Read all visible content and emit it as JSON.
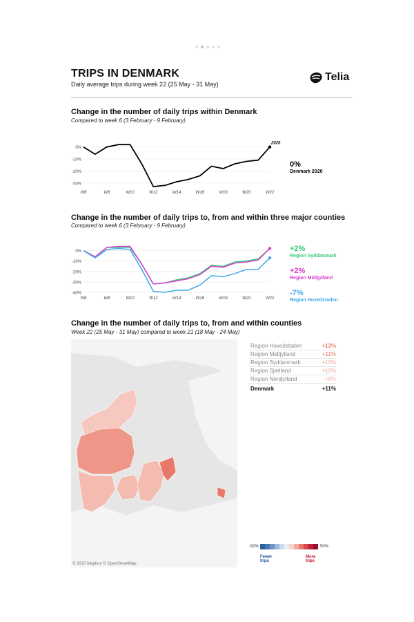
{
  "header": {
    "title": "TRIPS IN DENMARK",
    "subtitle": "Daily average trips during week 22 (25 May - 31 May)",
    "logo_text": "Telia"
  },
  "pager": {
    "count": 5,
    "active": 1
  },
  "colors": {
    "line_dk": "#000000",
    "syddanmark": "#3cc87a",
    "midtjylland": "#d63ccf",
    "hovedstaden": "#3aa8e8",
    "grid": "#e6e6e6"
  },
  "chart_data": [
    {
      "type": "line",
      "title": "Change in the number of daily trips within Denmark",
      "subtitle": "Compared to week 6 (3 February - 9 February)",
      "x": [
        6,
        7,
        8,
        9,
        10,
        11,
        12,
        13,
        14,
        15,
        16,
        17,
        18,
        19,
        20,
        21,
        22
      ],
      "xticks": [
        "W6",
        "W8",
        "W10",
        "W12",
        "W14",
        "W16",
        "W18",
        "W20",
        "W22"
      ],
      "yticks": [
        "0%",
        "-10%",
        "-20%",
        "-30%"
      ],
      "ylim": [
        -33,
        5
      ],
      "grid": true,
      "end_label": "2020",
      "series": [
        {
          "name": "Denmark 2020",
          "color": "#000000",
          "values": [
            0,
            -6,
            0,
            2,
            2,
            -14,
            -33,
            -32,
            -29,
            -27,
            -24,
            -16,
            -18,
            -14,
            -12,
            -11,
            0
          ]
        }
      ],
      "legend": [
        {
          "value": "0%",
          "label": "Denmark 2020",
          "color": "#000000"
        }
      ]
    },
    {
      "type": "line",
      "title": "Change in the number of daily trips to, from and within three major counties",
      "subtitle": "Compared to week 6 (3 February - 9 February)",
      "x": [
        6,
        7,
        8,
        9,
        10,
        11,
        12,
        13,
        14,
        15,
        16,
        17,
        18,
        19,
        20,
        21,
        22
      ],
      "xticks": [
        "W6",
        "W8",
        "W10",
        "W12",
        "W14",
        "W16",
        "W18",
        "W20",
        "W22"
      ],
      "yticks": [
        "0%",
        "-10%",
        "-20%",
        "-30%",
        "-40%"
      ],
      "ylim": [
        -40,
        5
      ],
      "grid": true,
      "series": [
        {
          "name": "Region Syddanmark",
          "color": "#3cc87a",
          "values": [
            0,
            -6,
            3,
            3,
            3,
            -13,
            -32,
            -31,
            -28,
            -26,
            -22,
            -14,
            -15,
            -11,
            -10,
            -8,
            2
          ]
        },
        {
          "name": "Region Midtjylland",
          "color": "#d63ccf",
          "values": [
            0,
            -6,
            3,
            4,
            4,
            -13,
            -32,
            -31,
            -29,
            -27,
            -23,
            -15,
            -16,
            -12,
            -11,
            -9,
            2
          ]
        },
        {
          "name": "Region Hovedstaden",
          "color": "#3aa8e8",
          "values": [
            0,
            -7,
            1,
            2,
            1,
            -18,
            -39,
            -40,
            -38,
            -38,
            -33,
            -24,
            -25,
            -22,
            -18,
            -18,
            -7
          ]
        }
      ],
      "legend": [
        {
          "value": "+2%",
          "label": "Region Syddanmark",
          "color": "#3cc87a"
        },
        {
          "value": "+2%",
          "label": "Region Midtjylland",
          "color": "#d63ccf"
        },
        {
          "value": "-7%",
          "label": "Region Hovedstaden",
          "color": "#3aa8e8"
        }
      ]
    }
  ],
  "map_section": {
    "title": "Change in the number of daily trips to, from and within counties",
    "subtitle": "Week 22 (25 May - 31 May) compared to week 21 (18 May - 24 May)",
    "credit": "© 2020 Mapbox © OpenStreetMap",
    "regions": [
      {
        "name": "Region Hovedstaden",
        "value": "+13%",
        "color": "#e8786a"
      },
      {
        "name": "Region Midtjylland",
        "value": "+11%",
        "color": "#ee9788"
      },
      {
        "name": "Region Syddanmark",
        "value": "+10%",
        "color": "#f4bcb1"
      },
      {
        "name": "Region Sjælland",
        "value": "+10%",
        "color": "#f4bcb1"
      },
      {
        "name": "Region Nordjylland",
        "value": "+8%",
        "color": "#f6c8bf"
      }
    ],
    "total": {
      "name": "Denmark",
      "value": "+11%"
    },
    "scale": {
      "min_label": "-50%",
      "max_label": "50%",
      "fewer_label": "Fewer trips",
      "more_label": "More trips",
      "fewer_color": "#1f4f99",
      "more_color": "#c8102e",
      "colors": [
        "#2f5e9e",
        "#4a78b3",
        "#6f97c6",
        "#9dbcdb",
        "#c8dbec",
        "#e9eef4",
        "#f6d5cc",
        "#f2ab9a",
        "#e8786a",
        "#d9474a",
        "#bf1e38",
        "#9e0e2c"
      ]
    }
  }
}
